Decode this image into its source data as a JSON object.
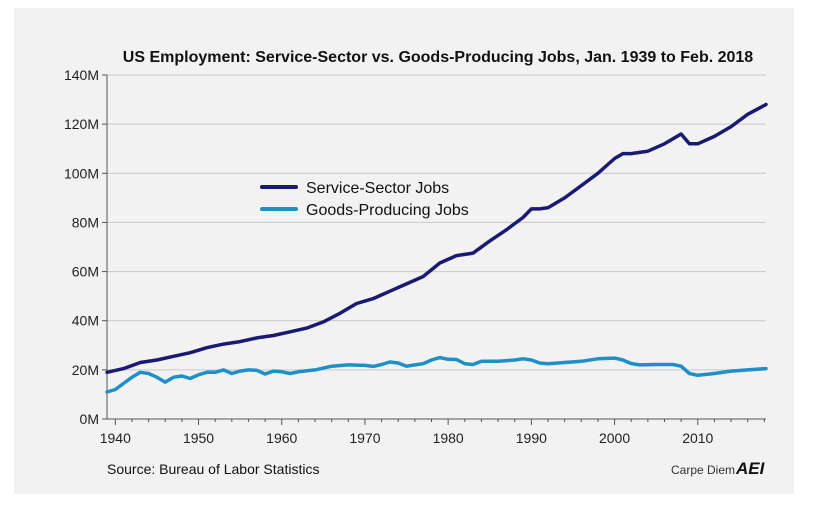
{
  "chart_data": {
    "type": "line",
    "title": "US Employment: Service-Sector vs. Goods-Producing Jobs, Jan. 1939 to Feb. 2018",
    "xlabel": "",
    "ylabel": "",
    "xlim": [
      1939,
      2018.2
    ],
    "ylim": [
      0,
      140
    ],
    "x_ticks": [
      1940,
      1950,
      1960,
      1970,
      1980,
      1990,
      2000,
      2010
    ],
    "y_ticks": [
      0,
      20,
      40,
      60,
      80,
      100,
      120,
      140
    ],
    "y_tick_labels": [
      "0M",
      "20M",
      "40M",
      "60M",
      "80M",
      "100M",
      "120M",
      "140M"
    ],
    "grid": "horizontal",
    "legend_position": "upper-left",
    "series": [
      {
        "name": "Service-Sector Jobs",
        "color": "#1a1a72",
        "points": [
          [
            1939,
            19
          ],
          [
            1941,
            20.5
          ],
          [
            1943,
            23
          ],
          [
            1945,
            24
          ],
          [
            1947,
            25.5
          ],
          [
            1949,
            27
          ],
          [
            1951,
            29
          ],
          [
            1953,
            30.5
          ],
          [
            1955,
            31.5
          ],
          [
            1957,
            33
          ],
          [
            1959,
            34
          ],
          [
            1961,
            35.5
          ],
          [
            1963,
            37
          ],
          [
            1965,
            39.5
          ],
          [
            1967,
            43
          ],
          [
            1969,
            47
          ],
          [
            1971,
            49
          ],
          [
            1973,
            52
          ],
          [
            1975,
            55
          ],
          [
            1977,
            58
          ],
          [
            1979,
            63.5
          ],
          [
            1981,
            66.5
          ],
          [
            1982,
            67
          ],
          [
            1983,
            67.5
          ],
          [
            1985,
            72.5
          ],
          [
            1987,
            77
          ],
          [
            1989,
            82
          ],
          [
            1990,
            85.5
          ],
          [
            1991,
            85.5
          ],
          [
            1992,
            86
          ],
          [
            1994,
            90
          ],
          [
            1996,
            95
          ],
          [
            1998,
            100
          ],
          [
            2000,
            106
          ],
          [
            2001,
            108
          ],
          [
            2002,
            108
          ],
          [
            2004,
            109
          ],
          [
            2006,
            112
          ],
          [
            2007,
            114
          ],
          [
            2008,
            116
          ],
          [
            2009,
            112
          ],
          [
            2010,
            112
          ],
          [
            2012,
            115
          ],
          [
            2014,
            119
          ],
          [
            2016,
            124
          ],
          [
            2018.2,
            128
          ]
        ]
      },
      {
        "name": "Goods-Producing Jobs",
        "color": "#1e8fc9",
        "points": [
          [
            1939,
            11
          ],
          [
            1940,
            12
          ],
          [
            1941,
            14.5
          ],
          [
            1942,
            17
          ],
          [
            1943,
            19
          ],
          [
            1944,
            18.5
          ],
          [
            1945,
            17
          ],
          [
            1946,
            15
          ],
          [
            1947,
            17
          ],
          [
            1948,
            17.5
          ],
          [
            1949,
            16.5
          ],
          [
            1950,
            18
          ],
          [
            1951,
            19
          ],
          [
            1952,
            19
          ],
          [
            1953,
            20
          ],
          [
            1954,
            18.5
          ],
          [
            1955,
            19.5
          ],
          [
            1956,
            20
          ],
          [
            1957,
            19.8
          ],
          [
            1958,
            18.3
          ],
          [
            1959,
            19.5
          ],
          [
            1960,
            19.2
          ],
          [
            1961,
            18.5
          ],
          [
            1962,
            19.2
          ],
          [
            1964,
            20
          ],
          [
            1966,
            21.5
          ],
          [
            1968,
            22
          ],
          [
            1970,
            21.8
          ],
          [
            1971,
            21.4
          ],
          [
            1972,
            22.2
          ],
          [
            1973,
            23.2
          ],
          [
            1974,
            22.8
          ],
          [
            1975,
            21.5
          ],
          [
            1976,
            22
          ],
          [
            1977,
            22.5
          ],
          [
            1978,
            24
          ],
          [
            1979,
            25
          ],
          [
            1980,
            24.3
          ],
          [
            1981,
            24.2
          ],
          [
            1982,
            22.5
          ],
          [
            1983,
            22.2
          ],
          [
            1984,
            23.5
          ],
          [
            1986,
            23.5
          ],
          [
            1988,
            24
          ],
          [
            1989,
            24.5
          ],
          [
            1990,
            24
          ],
          [
            1991,
            22.8
          ],
          [
            1992,
            22.5
          ],
          [
            1994,
            23
          ],
          [
            1996,
            23.5
          ],
          [
            1998,
            24.5
          ],
          [
            2000,
            24.8
          ],
          [
            2001,
            24
          ],
          [
            2002,
            22.6
          ],
          [
            2003,
            22
          ],
          [
            2005,
            22.2
          ],
          [
            2007,
            22.2
          ],
          [
            2008,
            21.5
          ],
          [
            2009,
            18.5
          ],
          [
            2010,
            17.8
          ],
          [
            2012,
            18.5
          ],
          [
            2014,
            19.5
          ],
          [
            2016,
            20
          ],
          [
            2018.2,
            20.5
          ]
        ]
      }
    ]
  },
  "source": "Source: Bureau of Labor Statistics",
  "brand": {
    "name": "Carpe Diem",
    "logo_text": "AEI"
  }
}
